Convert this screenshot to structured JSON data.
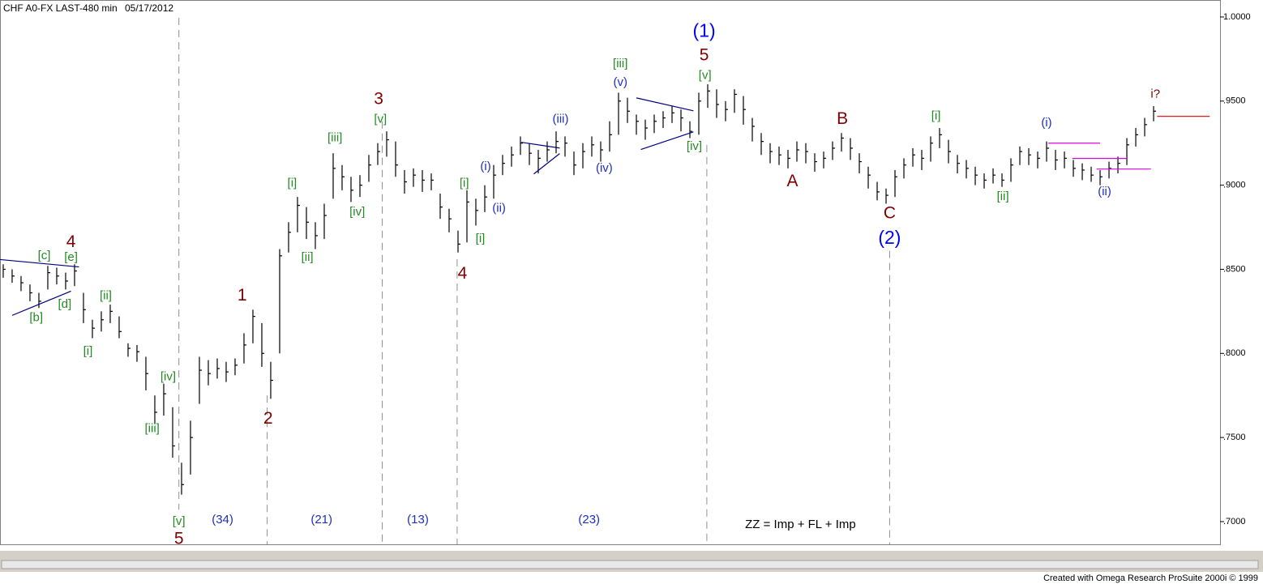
{
  "header": {
    "title": "CHF A0-FX LAST-480 min",
    "date": "05/17/2012"
  },
  "footer": "Created with Omega Research ProSuite 2000i © 1999",
  "chart_data": {
    "type": "ohlc",
    "color": "#000000",
    "xlim": [
      -0.36,
      136.45
    ],
    "ylim": [
      0.6865,
      1.0101
    ],
    "yticks": [
      {
        "value": 1,
        "label": "1.0000"
      },
      {
        "value": 0.95,
        "label": ".9500"
      },
      {
        "value": 0.9,
        "label": ".9000"
      },
      {
        "value": 0.85,
        "label": ".8500"
      },
      {
        "value": 0.8,
        "label": ".8000"
      },
      {
        "value": 0.75,
        "label": ".7500"
      },
      {
        "value": 0.7,
        "label": ".7000"
      }
    ],
    "high": [
      0.853,
      0.85,
      0.846,
      0.841,
      0.836,
      0.852,
      0.851,
      0.848,
      0.853,
      0.836,
      0.82,
      0.825,
      0.829,
      0.822,
      0.806,
      0.805,
      0.798,
      0.775,
      0.782,
      0.768,
      0.735,
      0.76,
      0.798,
      0.796,
      0.797,
      0.795,
      0.797,
      0.812,
      0.826,
      0.818,
      0.795,
      0.862,
      0.878,
      0.893,
      0.887,
      0.878,
      0.889,
      0.919,
      0.912,
      0.905,
      0.906,
      0.918,
      0.925,
      0.932,
      0.926,
      0.909,
      0.91,
      0.909,
      0.907,
      0.895,
      0.886,
      0.873,
      0.897,
      0.892,
      0.9,
      0.912,
      0.918,
      0.923,
      0.929,
      0.925,
      0.921,
      0.926,
      0.932,
      0.929,
      0.92,
      0.925,
      0.929,
      0.926,
      0.938,
      0.955,
      0.952,
      0.942,
      0.939,
      0.942,
      0.944,
      0.947,
      0.945,
      0.938,
      0.955,
      0.96,
      0.957,
      0.95,
      0.957,
      0.953,
      0.94,
      0.931,
      0.925,
      0.923,
      0.921,
      0.926,
      0.925,
      0.919,
      0.92,
      0.926,
      0.931,
      0.928,
      0.919,
      0.911,
      0.902,
      0.898,
      0.909,
      0.916,
      0.922,
      0.921,
      0.929,
      0.934,
      0.927,
      0.918,
      0.915,
      0.911,
      0.907,
      0.91,
      0.907,
      0.916,
      0.923,
      0.922,
      0.92,
      0.926,
      0.921,
      0.92,
      0.915,
      0.913,
      0.911,
      0.909,
      0.914,
      0.917,
      0.928,
      0.934,
      0.94,
      0.947
    ],
    "low": [
      0.845,
      0.842,
      0.837,
      0.831,
      0.827,
      0.838,
      0.841,
      0.838,
      0.84,
      0.818,
      0.809,
      0.813,
      0.818,
      0.809,
      0.798,
      0.795,
      0.778,
      0.758,
      0.763,
      0.738,
      0.716,
      0.728,
      0.77,
      0.781,
      0.785,
      0.783,
      0.787,
      0.794,
      0.806,
      0.792,
      0.773,
      0.8,
      0.86,
      0.872,
      0.868,
      0.862,
      0.868,
      0.892,
      0.897,
      0.89,
      0.893,
      0.902,
      0.912,
      0.917,
      0.905,
      0.895,
      0.899,
      0.896,
      0.897,
      0.88,
      0.872,
      0.86,
      0.866,
      0.876,
      0.884,
      0.892,
      0.906,
      0.911,
      0.918,
      0.912,
      0.907,
      0.914,
      0.919,
      0.917,
      0.906,
      0.91,
      0.917,
      0.914,
      0.92,
      0.93,
      0.937,
      0.93,
      0.927,
      0.931,
      0.934,
      0.937,
      0.932,
      0.928,
      0.93,
      0.946,
      0.94,
      0.938,
      0.943,
      0.936,
      0.926,
      0.918,
      0.913,
      0.912,
      0.91,
      0.914,
      0.913,
      0.908,
      0.91,
      0.915,
      0.92,
      0.915,
      0.907,
      0.898,
      0.891,
      0.889,
      0.893,
      0.904,
      0.911,
      0.909,
      0.914,
      0.922,
      0.913,
      0.907,
      0.904,
      0.9,
      0.898,
      0.901,
      0.899,
      0.902,
      0.912,
      0.912,
      0.91,
      0.914,
      0.909,
      0.91,
      0.905,
      0.903,
      0.902,
      0.9,
      0.904,
      0.907,
      0.912,
      0.923,
      0.929,
      0.938
    ],
    "close": [
      0.85,
      0.846,
      0.842,
      0.836,
      0.831,
      0.848,
      0.846,
      0.843,
      0.849,
      0.826,
      0.815,
      0.82,
      0.825,
      0.813,
      0.803,
      0.801,
      0.788,
      0.765,
      0.776,
      0.745,
      0.722,
      0.75,
      0.79,
      0.788,
      0.791,
      0.789,
      0.793,
      0.805,
      0.822,
      0.8,
      0.784,
      0.858,
      0.872,
      0.888,
      0.878,
      0.87,
      0.882,
      0.91,
      0.905,
      0.897,
      0.9,
      0.912,
      0.92,
      0.927,
      0.912,
      0.902,
      0.906,
      0.903,
      0.903,
      0.887,
      0.88,
      0.865,
      0.89,
      0.885,
      0.893,
      0.906,
      0.913,
      0.918,
      0.925,
      0.919,
      0.916,
      0.921,
      0.926,
      0.925,
      0.912,
      0.92,
      0.924,
      0.921,
      0.93,
      0.95,
      0.944,
      0.938,
      0.934,
      0.938,
      0.94,
      0.943,
      0.94,
      0.932,
      0.95,
      0.956,
      0.948,
      0.945,
      0.954,
      0.945,
      0.935,
      0.926,
      0.92,
      0.918,
      0.916,
      0.921,
      0.92,
      0.914,
      0.916,
      0.922,
      0.928,
      0.922,
      0.914,
      0.906,
      0.896,
      0.894,
      0.905,
      0.912,
      0.918,
      0.916,
      0.925,
      0.93,
      0.92,
      0.913,
      0.91,
      0.906,
      0.903,
      0.906,
      0.903,
      0.912,
      0.92,
      0.918,
      0.916,
      0.922,
      0.915,
      0.916,
      0.91,
      0.909,
      0.906,
      0.905,
      0.91,
      0.913,
      0.924,
      0.93,
      0.936,
      0.944
    ],
    "vlines": [
      {
        "x": 19.7,
        "y": [
          0.9995,
          0.707
        ]
      },
      {
        "x": 29.6,
        "y": [
          0.775,
          0.6865
        ]
      },
      {
        "x": 42.5,
        "y": [
          0.938,
          0.6865
        ]
      },
      {
        "x": 50.9,
        "y": [
          0.856,
          0.6865
        ]
      },
      {
        "x": 78.9,
        "y": [
          0.924,
          0.6865
        ]
      },
      {
        "x": 99.4,
        "y": [
          0.861,
          0.6865
        ]
      }
    ],
    "lines": [
      {
        "x": [
          -0.36,
          8.5
        ],
        "y": [
          0.8558,
          0.8514
        ],
        "color": "#000080"
      },
      {
        "x": [
          1,
          7.6
        ],
        "y": [
          0.8226,
          0.837
        ],
        "color": "#000080"
      },
      {
        "x": [
          58.1,
          62.4
        ],
        "y": [
          0.9255,
          0.9221
        ],
        "color": "#000080"
      },
      {
        "x": [
          59.5,
          62.4
        ],
        "y": [
          0.9067,
          0.9188
        ],
        "color": "#000080"
      },
      {
        "x": [
          71,
          77.4
        ],
        "y": [
          0.9519,
          0.9442
        ],
        "color": "#000080"
      },
      {
        "x": [
          71.5,
          77.4
        ],
        "y": [
          0.9212,
          0.9317
        ],
        "color": "#000080"
      },
      {
        "x": [
          117.2,
          123
        ],
        "y": [
          0.925,
          0.925
        ],
        "color": "#e000e0"
      },
      {
        "x": [
          119.9,
          126
        ],
        "y": [
          0.9159,
          0.9159
        ],
        "color": "#e000e0"
      },
      {
        "x": [
          122.6,
          128.7
        ],
        "y": [
          0.9096,
          0.9096
        ],
        "color": "#e000e0"
      },
      {
        "x": [
          129.4,
          135.3
        ],
        "y": [
          0.9409,
          0.9409
        ],
        "color": "#e00000"
      }
    ],
    "annotations": [
      {
        "text": "[c]",
        "x": 4.6,
        "y": 0.858,
        "color": "#228b22",
        "style": "minor"
      },
      {
        "text": "[e]",
        "x": 7.6,
        "y": 0.857,
        "color": "#228b22",
        "style": "minor"
      },
      {
        "text": "4",
        "x": 7.6,
        "y": 0.866,
        "color": "#800000",
        "style": "primary"
      },
      {
        "text": "[b]",
        "x": 3.7,
        "y": 0.821,
        "color": "#228b22",
        "style": "minor"
      },
      {
        "text": "[d]",
        "x": 6.9,
        "y": 0.829,
        "color": "#228b22",
        "style": "minor"
      },
      {
        "text": "[ii]",
        "x": 11.5,
        "y": 0.834,
        "color": "#228b22",
        "style": "minor"
      },
      {
        "text": "[i]",
        "x": 9.5,
        "y": 0.801,
        "color": "#228b22",
        "style": "minor"
      },
      {
        "text": "[iv]",
        "x": 18.5,
        "y": 0.786,
        "color": "#228b22",
        "style": "minor"
      },
      {
        "text": "[iii]",
        "x": 16.7,
        "y": 0.755,
        "color": "#228b22",
        "style": "minor"
      },
      {
        "text": "[v]",
        "x": 19.7,
        "y": 0.7,
        "color": "#228b22",
        "style": "minor"
      },
      {
        "text": "5",
        "x": 19.7,
        "y": 0.6895,
        "color": "#800000",
        "style": "primary"
      },
      {
        "text": "1",
        "x": 26.8,
        "y": 0.834,
        "color": "#800000",
        "style": "primary"
      },
      {
        "text": "2",
        "x": 29.7,
        "y": 0.761,
        "color": "#800000",
        "style": "primary"
      },
      {
        "text": "[i]",
        "x": 32.4,
        "y": 0.901,
        "color": "#228b22",
        "style": "minor"
      },
      {
        "text": "[ii]",
        "x": 34.1,
        "y": 0.857,
        "color": "#228b22",
        "style": "minor"
      },
      {
        "text": "[iii]",
        "x": 37.2,
        "y": 0.928,
        "color": "#228b22",
        "style": "minor"
      },
      {
        "text": "[iv]",
        "x": 39.7,
        "y": 0.884,
        "color": "#228b22",
        "style": "minor"
      },
      {
        "text": "[v]",
        "x": 42.3,
        "y": 0.939,
        "color": "#228b22",
        "style": "minor"
      },
      {
        "text": "3",
        "x": 42.1,
        "y": 0.951,
        "color": "#800000",
        "style": "primary"
      },
      {
        "text": "4",
        "x": 51.5,
        "y": 0.847,
        "color": "#800000",
        "style": "primary"
      },
      {
        "text": "[i]",
        "x": 51.7,
        "y": 0.901,
        "color": "#228b22",
        "style": "minor"
      },
      {
        "text": "[i]",
        "x": 53.5,
        "y": 0.868,
        "color": "#228b22",
        "style": "minor"
      },
      {
        "text": "(i)",
        "x": 54.1,
        "y": 0.911,
        "color": "#1f2fbf",
        "style": "minor"
      },
      {
        "text": "(ii)",
        "x": 55.6,
        "y": 0.886,
        "color": "#1f2fbf",
        "style": "minor"
      },
      {
        "text": "(iii)",
        "x": 62.5,
        "y": 0.939,
        "color": "#1f2fbf",
        "style": "minor"
      },
      {
        "text": "(iv)",
        "x": 67.4,
        "y": 0.91,
        "color": "#1f2fbf",
        "style": "minor"
      },
      {
        "text": "[iii]",
        "x": 69.2,
        "y": 0.972,
        "color": "#228b22",
        "style": "minor"
      },
      {
        "text": "(v)",
        "x": 69.2,
        "y": 0.961,
        "color": "#1f2fbf",
        "style": "minor"
      },
      {
        "text": "[iv]",
        "x": 77.5,
        "y": 0.923,
        "color": "#228b22",
        "style": "minor"
      },
      {
        "text": "[v]",
        "x": 78.7,
        "y": 0.965,
        "color": "#228b22",
        "style": "minor"
      },
      {
        "text": "5",
        "x": 78.6,
        "y": 0.977,
        "color": "#800000",
        "style": "primary"
      },
      {
        "text": "(1)",
        "x": 78.6,
        "y": 0.991,
        "color": "#0000ff",
        "style": "cycle"
      },
      {
        "text": "A",
        "x": 88.5,
        "y": 0.902,
        "color": "#800000",
        "style": "primary"
      },
      {
        "text": "B",
        "x": 94.1,
        "y": 0.939,
        "color": "#800000",
        "style": "primary"
      },
      {
        "text": "C",
        "x": 99.4,
        "y": 0.883,
        "color": "#800000",
        "style": "primary"
      },
      {
        "text": "(2)",
        "x": 99.4,
        "y": 0.868,
        "color": "#0000ff",
        "style": "cycle"
      },
      {
        "text": "[i]",
        "x": 104.6,
        "y": 0.941,
        "color": "#228b22",
        "style": "minor"
      },
      {
        "text": "[ii]",
        "x": 112.1,
        "y": 0.893,
        "color": "#228b22",
        "style": "minor"
      },
      {
        "text": "(i)",
        "x": 117,
        "y": 0.937,
        "color": "#1f2fbf",
        "style": "minor"
      },
      {
        "text": "(ii)",
        "x": 123.5,
        "y": 0.896,
        "color": "#1f2fbf",
        "style": "minor"
      },
      {
        "text": "i?",
        "x": 129.2,
        "y": 0.954,
        "color": "#800000",
        "style": "minor"
      },
      {
        "text": "(34)",
        "x": 24.6,
        "y": 0.701,
        "color": "#1f2fbf",
        "style": "minor"
      },
      {
        "text": "(21)",
        "x": 35.7,
        "y": 0.701,
        "color": "#1f2fbf",
        "style": "minor"
      },
      {
        "text": "(13)",
        "x": 46.5,
        "y": 0.701,
        "color": "#1f2fbf",
        "style": "minor"
      },
      {
        "text": "(23)",
        "x": 65.7,
        "y": 0.701,
        "color": "#1f2fbf",
        "style": "minor"
      },
      {
        "text": "ZZ = Imp + FL + Imp",
        "x": 89.4,
        "y": 0.698,
        "color": "#000000",
        "style": "minor"
      }
    ]
  }
}
